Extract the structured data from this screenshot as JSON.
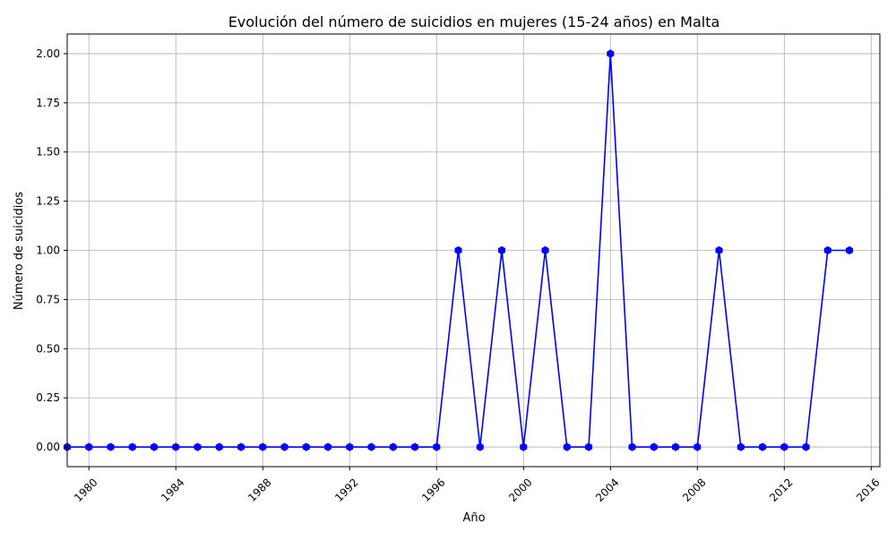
{
  "chart_data": {
    "type": "line",
    "title": "Evolución del número de suicidios en mujeres (15-24 años) en Malta",
    "xlabel": "Año",
    "ylabel": "Número de suicidios",
    "xlim": [
      1979.0,
      2016.4
    ],
    "ylim": [
      -0.1,
      2.1
    ],
    "x_ticks": [
      1980,
      1984,
      1988,
      1992,
      1996,
      2000,
      2004,
      2008,
      2012,
      2016
    ],
    "x_tick_labels": [
      "1980",
      "1984",
      "1988",
      "1992",
      "1996",
      "2000",
      "2004",
      "2008",
      "2012",
      "2016"
    ],
    "y_ticks": [
      0,
      0.25,
      0.5,
      0.75,
      1.0,
      1.25,
      1.5,
      1.75,
      2.0
    ],
    "y_tick_labels": [
      "0.00",
      "0.25",
      "0.50",
      "0.75",
      "1.00",
      "1.25",
      "1.50",
      "1.75",
      "2.00"
    ],
    "grid": true,
    "legend": "none",
    "series": [
      {
        "color": "#0000ff",
        "marker": "hexagon",
        "x": [
          1979,
          1980,
          1981,
          1982,
          1983,
          1984,
          1985,
          1986,
          1987,
          1988,
          1989,
          1990,
          1991,
          1992,
          1993,
          1994,
          1995,
          1996,
          1997,
          1998,
          1999,
          2000,
          2001,
          2002,
          2003,
          2004,
          2005,
          2006,
          2007,
          2008,
          2009,
          2010,
          2011,
          2012,
          2013,
          2014,
          2015
        ],
        "y": [
          0,
          0,
          0,
          0,
          0,
          0,
          0,
          0,
          0,
          0,
          0,
          0,
          0,
          0,
          0,
          0,
          0,
          0,
          1,
          0,
          1,
          0,
          1,
          0,
          0,
          2,
          0,
          0,
          0,
          0,
          1,
          0,
          0,
          0,
          0,
          1,
          1
        ]
      }
    ]
  }
}
